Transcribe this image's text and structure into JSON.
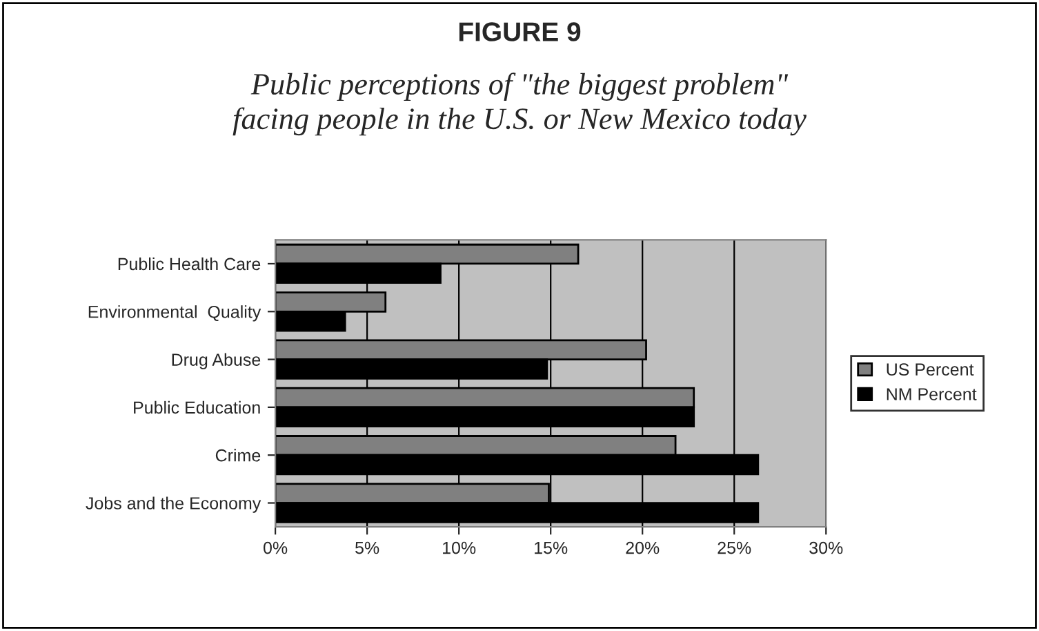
{
  "chart_data": {
    "type": "bar",
    "orientation": "horizontal",
    "title": "FIGURE 9",
    "subtitle": "Public perceptions of \"the biggest problem\"\nfacing people in the U.S. or New Mexico today",
    "categories": [
      "Public Health Care",
      "Environmental  Quality",
      "Drug Abuse",
      "Public Education",
      "Crime",
      "Jobs and the Economy"
    ],
    "series": [
      {
        "name": "US Percent",
        "color": "#808080",
        "values": [
          16.5,
          6.0,
          20.2,
          22.8,
          21.8,
          14.9
        ]
      },
      {
        "name": "NM Percent",
        "color": "#000000",
        "values": [
          9.0,
          3.8,
          14.8,
          22.8,
          26.3,
          26.3
        ]
      }
    ],
    "xlim": [
      0,
      30
    ],
    "xticks": [
      {
        "value": 0,
        "label": "0%"
      },
      {
        "value": 5,
        "label": "5%"
      },
      {
        "value": 10,
        "label": "10%"
      },
      {
        "value": 15,
        "label": "15%"
      },
      {
        "value": 20,
        "label": "20%"
      },
      {
        "value": 25,
        "label": "25%"
      },
      {
        "value": 30,
        "label": "30%"
      }
    ],
    "grid": "x",
    "legend": "right"
  }
}
